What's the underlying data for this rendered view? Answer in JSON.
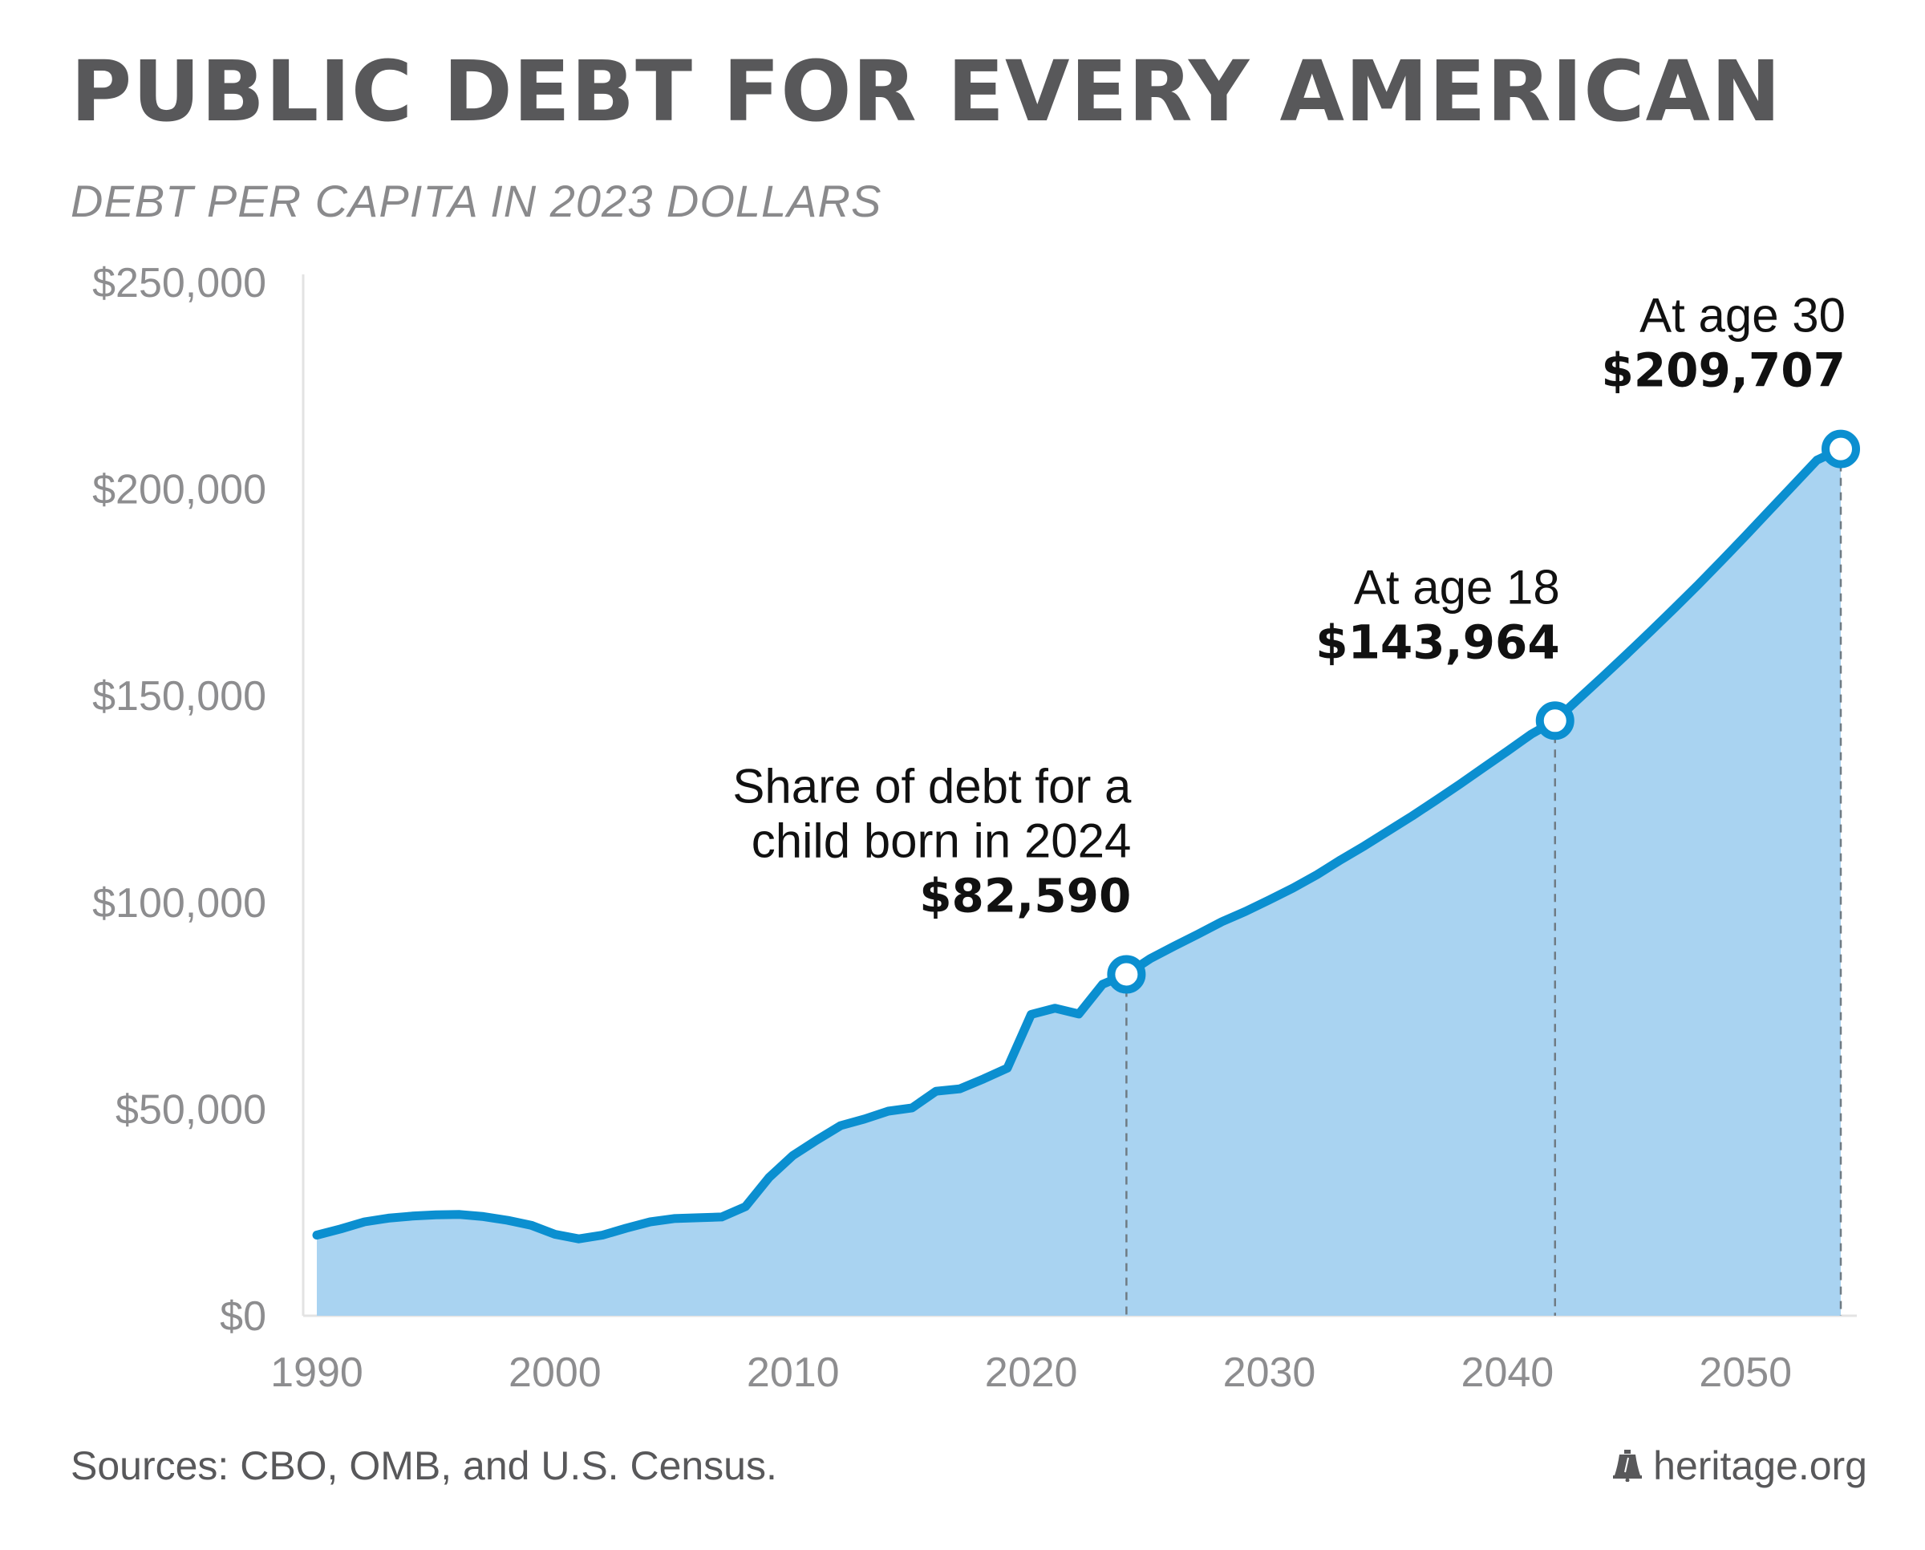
{
  "header": {
    "title": "PUBLIC DEBT FOR EVERY AMERICAN",
    "subtitle": "DEBT PER CAPITA IN 2023 DOLLARS"
  },
  "footer": {
    "sources": "Sources: CBO, OMB, and U.S. Census.",
    "brand": "heritage.org",
    "brand_icon": "liberty-bell-icon"
  },
  "colors": {
    "line": "#0b8fd0",
    "area": "#a9d3f1",
    "axis_text": "#8d8d8f",
    "title": "#58585a"
  },
  "chart_data": {
    "type": "area",
    "title": "PUBLIC DEBT FOR EVERY AMERICAN",
    "subtitle": "DEBT PER CAPITA IN 2023 DOLLARS",
    "xlim": [
      1990,
      2054
    ],
    "ylim": [
      0,
      250000
    ],
    "yticks": [
      0,
      50000,
      100000,
      150000,
      200000,
      250000
    ],
    "ytick_labels": [
      "$0",
      "$50,000",
      "$100,000",
      "$150,000",
      "$200,000",
      "$250,000"
    ],
    "xticks": [
      1990,
      2000,
      2010,
      2020,
      2030,
      2040,
      2050
    ],
    "xtick_labels": [
      "1990",
      "2000",
      "2010",
      "2020",
      "2030",
      "2040",
      "2050"
    ],
    "grid": false,
    "series": [
      {
        "x": [
          1990,
          1991,
          1992,
          1993,
          1994,
          1995,
          1996,
          1997,
          1998,
          1999,
          2000,
          2001,
          2002,
          2003,
          2004,
          2005,
          2006,
          2007,
          2008,
          2009,
          2010,
          2011,
          2012,
          2013,
          2014,
          2015,
          2016,
          2017,
          2018,
          2019,
          2020,
          2021,
          2022,
          2023,
          2024,
          2025,
          2026,
          2027,
          2028,
          2029,
          2030,
          2031,
          2032,
          2033,
          2034,
          2035,
          2036,
          2037,
          2038,
          2039,
          2040,
          2041,
          2042,
          2043,
          2044,
          2045,
          2046,
          2047,
          2048,
          2049,
          2050,
          2051,
          2052,
          2053,
          2054
        ],
        "y": [
          19500,
          21000,
          22700,
          23600,
          24100,
          24400,
          24500,
          24000,
          23100,
          21900,
          19700,
          18600,
          19500,
          21200,
          22700,
          23500,
          23700,
          23900,
          26400,
          33500,
          38800,
          42500,
          46000,
          47600,
          49500,
          50300,
          54300,
          54900,
          57300,
          59900,
          72900,
          74400,
          73000,
          80200,
          82590,
          86400,
          89400,
          92300,
          95300,
          97800,
          100600,
          103500,
          106700,
          110300,
          113700,
          117300,
          120900,
          124700,
          128600,
          132600,
          136600,
          140700,
          143964,
          149300,
          154600,
          160000,
          165500,
          171100,
          176800,
          182700,
          188700,
          194800,
          200900,
          207000,
          209707
        ]
      }
    ],
    "annotations": [
      {
        "x": 2024,
        "y": 82590,
        "lines": [
          "Share of debt for a",
          "child born in 2024"
        ],
        "value": "$82,590"
      },
      {
        "x": 2042,
        "y": 143964,
        "lines": [
          "At age 18"
        ],
        "value": "$143,964"
      },
      {
        "x": 2054,
        "y": 209707,
        "lines": [
          "At age 30"
        ],
        "value": "$209,707"
      }
    ]
  }
}
